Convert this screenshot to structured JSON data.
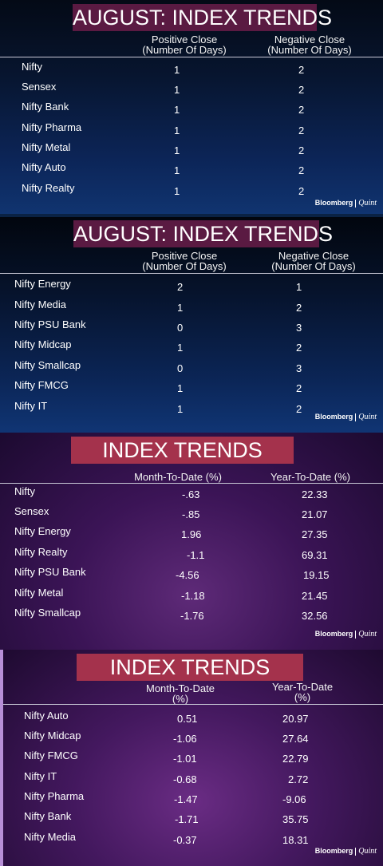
{
  "panels": [
    {
      "title": "AUGUST: INDEX TRENDS",
      "col1": [
        "Positive Close",
        "(Number Of Days)"
      ],
      "col2": [
        "Negative Close",
        "(Number Of Days)"
      ],
      "rows": [
        {
          "name": "Nifty",
          "a": "1",
          "b": "2"
        },
        {
          "name": "Sensex",
          "a": "1",
          "b": "2"
        },
        {
          "name": "Nifty Bank",
          "a": "1",
          "b": "2"
        },
        {
          "name": "Nifty Pharma",
          "a": "1",
          "b": "2"
        },
        {
          "name": "Nifty Metal",
          "a": "1",
          "b": "2"
        },
        {
          "name": "Nifty Auto",
          "a": "1",
          "b": "2"
        },
        {
          "name": "Nifty Realty",
          "a": "1",
          "b": "2"
        }
      ]
    },
    {
      "title": "AUGUST: INDEX TRENDS",
      "col1": [
        "Positive Close",
        "(Number Of Days)"
      ],
      "col2": [
        "Negative Close",
        "(Number Of Days)"
      ],
      "rows": [
        {
          "name": "Nifty Energy",
          "a": "2",
          "b": "1"
        },
        {
          "name": "Nifty Media",
          "a": "1",
          "b": "2"
        },
        {
          "name": "Nifty PSU Bank",
          "a": "0",
          "b": "3"
        },
        {
          "name": "Nifty Midcap",
          "a": "1",
          "b": "2"
        },
        {
          "name": "Nifty Smallcap",
          "a": "0",
          "b": "3"
        },
        {
          "name": "Nifty FMCG",
          "a": "1",
          "b": "2"
        },
        {
          "name": "Nifty IT",
          "a": "1",
          "b": "2"
        }
      ]
    },
    {
      "title": "INDEX TRENDS",
      "col1": [
        "Month-To-Date  (%)"
      ],
      "col2": [
        "Year-To-Date (%)"
      ],
      "rows": [
        {
          "name": "Nifty",
          "a": "-.63",
          "b": "22.33"
        },
        {
          "name": "Sensex",
          "a": "-.85",
          "b": "21.07"
        },
        {
          "name": "Nifty Energy",
          "a": "1.96",
          "b": "27.35"
        },
        {
          "name": "Nifty Realty",
          "a": "-1.1",
          "b": "69.31"
        },
        {
          "name": "Nifty PSU Bank",
          "a": "-4.56",
          "b": "19.15"
        },
        {
          "name": "Nifty Metal",
          "a": "-1.18",
          "b": "21.45"
        },
        {
          "name": "Nifty Smallcap",
          "a": "-1.76",
          "b": "32.56"
        }
      ]
    },
    {
      "title": "INDEX TRENDS",
      "col1": [
        "Month-To-Date",
        "(%)"
      ],
      "col2": [
        "Year-To-Date",
        "(%)"
      ],
      "rows": [
        {
          "name": "Nifty Auto",
          "a": "0.51",
          "b": "20.97"
        },
        {
          "name": "Nifty Midcap",
          "a": "-1.06",
          "b": "27.64"
        },
        {
          "name": "Nifty FMCG",
          "a": "-1.01",
          "b": "22.79"
        },
        {
          "name": "Nifty IT",
          "a": "-0.68",
          "b": "2.72"
        },
        {
          "name": "Nifty Pharma",
          "a": "-1.47",
          "b": "-9.06"
        },
        {
          "name": "Nifty Bank",
          "a": "-1.71",
          "b": "35.75"
        },
        {
          "name": "Nifty Media",
          "a": "-0.37",
          "b": "18.31"
        }
      ]
    }
  ],
  "branding": {
    "bloomberg": "Bloomberg",
    "quint": "Quint"
  },
  "colors": {
    "aug_title_bg": "#5a1a42",
    "index_title_bg": "#a4324c",
    "blue_panel": "#0c2558",
    "purple_panel": "#43185e"
  }
}
